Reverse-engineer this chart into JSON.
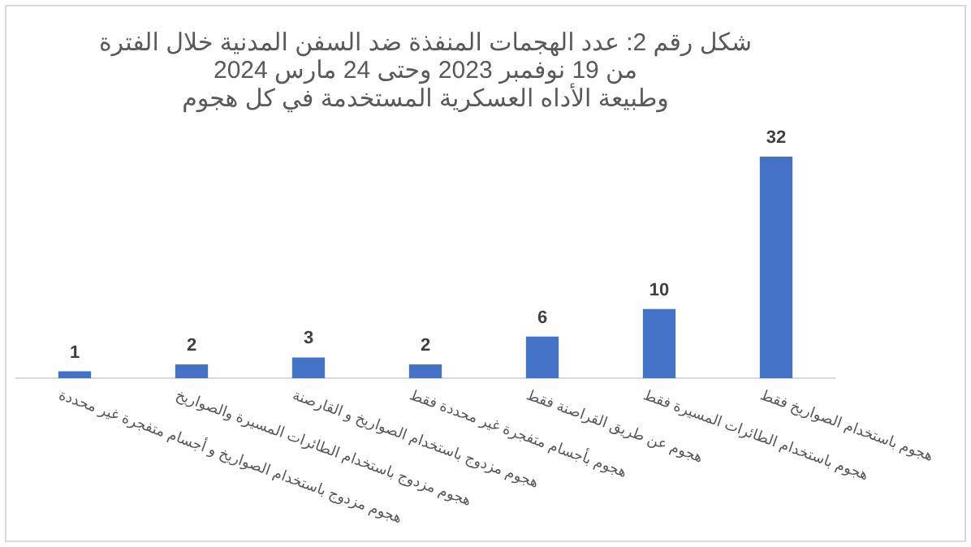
{
  "chart_data": {
    "type": "bar",
    "title": [
      "شكل رقم 2: عدد الهجمات المنفذة ضد السفن المدنية خلال الفترة",
      "من 19 نوفمبر 2023 وحتى 24 مارس 2024",
      "وطبيعة الأداه العسكرية المستخدمة في كل هجوم"
    ],
    "categories": [
      "هجوم مزدوج باستخدام الصواريخ و أجسام متفجرة غير محددة",
      "هجوم مزدوج باستخدام الطائرات المسيرة والصواريخ",
      "هجوم مزدوج باستخدام الصواريخ و القارصنة",
      "هجوم بأجسام متفجرة غير محددة فقط",
      "هجوم عن طريق القراصنة فقط",
      "هجوم باستخدام الطائرات المسيرة فقط",
      "هجوم باستخدام الصواريخ فقط"
    ],
    "values": [
      1,
      2,
      3,
      2,
      6,
      10,
      32
    ],
    "color": "#4472c4",
    "data_labels": true,
    "grid": false,
    "legend": false
  }
}
